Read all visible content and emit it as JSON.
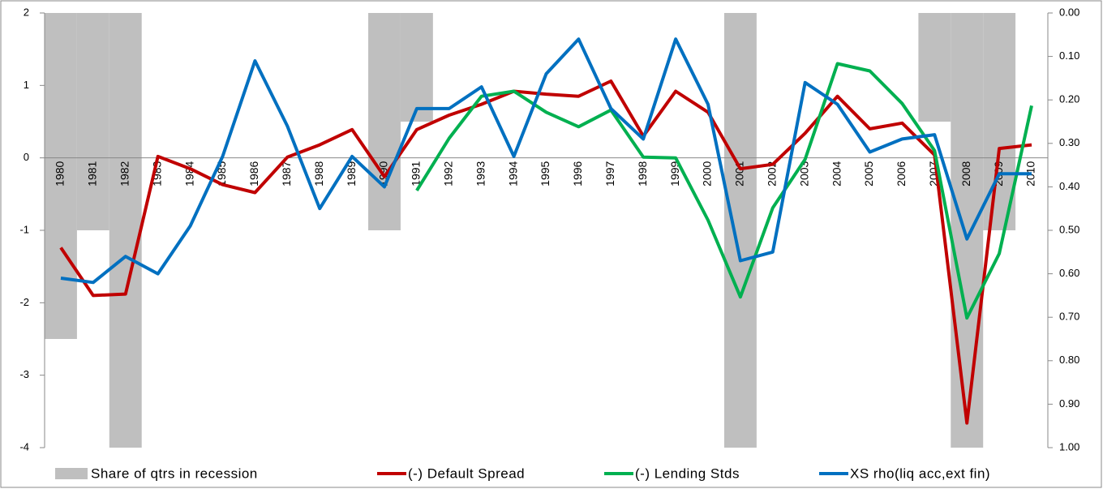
{
  "chart_data": {
    "type": "combo",
    "categories": [
      "1980",
      "1981",
      "1982",
      "1983",
      "1984",
      "1985",
      "1986",
      "1987",
      "1988",
      "1989",
      "1990",
      "1991",
      "1992",
      "1993",
      "1994",
      "1995",
      "1996",
      "1997",
      "1998",
      "1999",
      "2000",
      "2001",
      "2002",
      "2003",
      "2004",
      "2005",
      "2006",
      "2007",
      "2008",
      "2009",
      "2010"
    ],
    "ylim": [
      -4,
      2
    ],
    "yticks": [
      -4,
      -3,
      -2,
      -1,
      0,
      1,
      2
    ],
    "y2lim": [
      1,
      0
    ],
    "y2ticks": [
      {
        "value": 0,
        "label": "0.00"
      },
      {
        "value": 0.1,
        "label": "0.10"
      },
      {
        "value": 0.2,
        "label": "0.20"
      },
      {
        "value": 0.3,
        "label": "0.30"
      },
      {
        "value": 0.4,
        "label": "0.40"
      },
      {
        "value": 0.5,
        "label": "0.50"
      },
      {
        "value": 0.6,
        "label": "0.60"
      },
      {
        "value": 0.7,
        "label": "0.70"
      },
      {
        "value": 0.8,
        "label": "0.80"
      },
      {
        "value": 0.9,
        "label": "0.90"
      },
      {
        "value": 1,
        "label": "1.00"
      }
    ],
    "legend": "bottom",
    "series": [
      {
        "name": "Share of qtrs in recession",
        "type": "bar",
        "axis": "y2",
        "color": "#bfbfbf",
        "values": [
          0.75,
          0.5,
          1,
          0,
          0,
          0,
          0,
          0,
          0,
          0,
          0.5,
          0.25,
          0,
          0,
          0,
          0,
          0,
          0,
          0,
          0,
          0,
          1,
          0,
          0,
          0,
          0,
          0,
          0.25,
          1,
          0.5,
          0
        ]
      },
      {
        "name": "(-) Default Spread",
        "type": "line",
        "color": "#c00000",
        "values": [
          -1.24,
          -1.9,
          -1.88,
          0.02,
          -0.15,
          -0.37,
          -0.48,
          0.01,
          0.18,
          0.39,
          -0.26,
          0.39,
          0.59,
          0.74,
          0.92,
          0.88,
          0.85,
          1.06,
          0.3,
          0.92,
          0.63,
          -0.15,
          -0.09,
          0.34,
          0.85,
          0.4,
          0.48,
          0.04,
          -3.66,
          0.13,
          0.18
        ]
      },
      {
        "name": "(-) Lending Stds",
        "type": "line",
        "color": "#00b050",
        "values": [
          null,
          null,
          null,
          null,
          null,
          null,
          null,
          null,
          null,
          null,
          null,
          -0.45,
          0.27,
          0.85,
          0.92,
          0.63,
          0.43,
          0.66,
          0.01,
          0.0,
          -0.86,
          -1.92,
          -0.69,
          -0.02,
          1.3,
          1.2,
          0.75,
          0.1,
          -2.21,
          -1.32,
          0.72
        ]
      },
      {
        "name": "XS rho(liq acc,ext fin)",
        "type": "line",
        "axis": "y2",
        "color": "#0070c0",
        "values": [
          0.61,
          0.62,
          0.56,
          0.6,
          0.49,
          0.33,
          0.11,
          0.26,
          0.45,
          0.33,
          0.4,
          0.22,
          0.22,
          0.17,
          0.33,
          0.14,
          0.06,
          0.22,
          0.29,
          0.06,
          0.21,
          0.57,
          0.55,
          0.16,
          0.21,
          0.32,
          0.29,
          0.28,
          0.52,
          0.37,
          0.37
        ]
      }
    ]
  }
}
